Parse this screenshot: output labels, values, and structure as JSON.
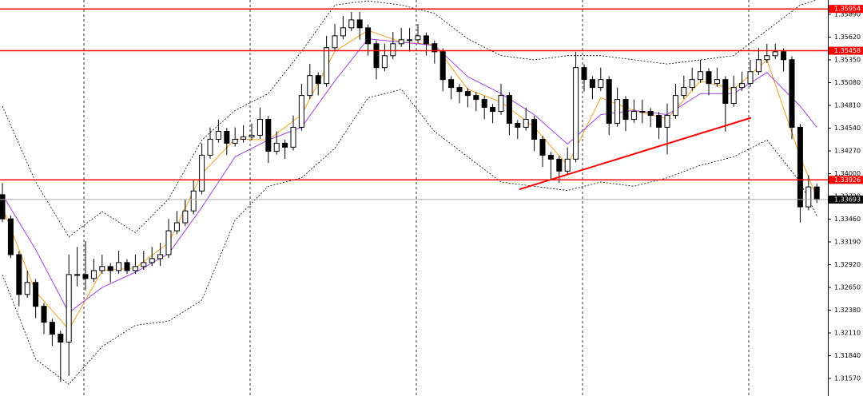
{
  "chart_data": {
    "type": "candlestick",
    "open": [
      1.3375,
      1.33464,
      1.33039,
      1.32567,
      1.32709,
      1.32426,
      1.32237,
      1.32095,
      1.32001,
      1.32803,
      1.32803,
      1.32756,
      1.3285,
      1.32898,
      1.3285,
      1.32945,
      1.3285,
      1.32898,
      1.32945,
      1.32992,
      1.33039,
      1.33322,
      1.33417,
      1.33558,
      1.33794,
      1.34219,
      1.34408,
      1.34502,
      1.34361,
      1.34408,
      1.34436,
      1.34455,
      1.34644,
      1.34266,
      1.34361,
      1.34314,
      1.3455,
      1.34927,
      1.35163,
      1.35069,
      1.35494,
      1.35635,
      1.3573,
      1.35824,
      1.3573,
      1.35541,
      1.35258,
      1.35399,
      1.35541,
      1.35588,
      1.35588,
      1.35635,
      1.35541,
      1.35446,
      1.35116,
      1.35022,
      1.34974,
      1.34927,
      1.3488,
      1.34786,
      1.34738,
      1.34927,
      1.34597,
      1.3455,
      1.34644,
      1.34408,
      1.34219,
      1.34172,
      1.3403,
      1.34172,
      1.35258,
      1.35116,
      1.35022,
      1.35116,
      1.34597,
      1.3488,
      1.34644,
      1.34738,
      1.34738,
      1.34691,
      1.3455,
      1.34691,
      1.34927,
      1.35022,
      1.35116,
      1.3521,
      1.35069,
      1.35116,
      1.34833,
      1.35022,
      1.35069,
      1.3521,
      1.35352,
      1.35399,
      1.35446,
      1.35352,
      1.3455,
      1.33606,
      1.33842
    ],
    "high": [
      1.3389,
      1.33504,
      1.33079,
      1.32849,
      1.32749,
      1.32466,
      1.32277,
      1.32135,
      1.3304,
      1.3313,
      1.332,
      1.3299,
      1.33038,
      1.32938,
      1.33085,
      1.32985,
      1.33038,
      1.33085,
      1.33132,
      1.33179,
      1.33462,
      1.33557,
      1.33698,
      1.33934,
      1.34359,
      1.34548,
      1.34642,
      1.34542,
      1.34548,
      1.34576,
      1.34595,
      1.34784,
      1.34684,
      1.34501,
      1.34401,
      1.3469,
      1.35067,
      1.35303,
      1.35203,
      1.35634,
      1.35775,
      1.3587,
      1.35918,
      1.35918,
      1.3577,
      1.35581,
      1.35539,
      1.35681,
      1.35728,
      1.35728,
      1.35775,
      1.35675,
      1.35581,
      1.35486,
      1.35156,
      1.35062,
      1.35014,
      1.34967,
      1.3492,
      1.34826,
      1.35067,
      1.34967,
      1.34637,
      1.34784,
      1.34684,
      1.34448,
      1.34259,
      1.34212,
      1.34312,
      1.35446,
      1.35298,
      1.35156,
      1.35256,
      1.35156,
      1.3502,
      1.3492,
      1.34878,
      1.34878,
      1.34778,
      1.34731,
      1.34831,
      1.35067,
      1.35162,
      1.35256,
      1.3535,
      1.3525,
      1.35256,
      1.35156,
      1.35162,
      1.35209,
      1.3535,
      1.35492,
      1.35539,
      1.3554,
      1.35486,
      1.35392,
      1.3459,
      1.33982,
      1.33882
    ],
    "low": [
      1.33424,
      1.32999,
      1.32427,
      1.32527,
      1.32286,
      1.32097,
      1.31955,
      1.31529,
      1.316,
      1.32663,
      1.32616,
      1.32716,
      1.3281,
      1.3271,
      1.3281,
      1.3281,
      1.3281,
      1.32858,
      1.32905,
      1.32905,
      1.32999,
      1.33282,
      1.33377,
      1.33518,
      1.33754,
      1.34179,
      1.34368,
      1.34221,
      1.34321,
      1.34368,
      1.34396,
      1.34415,
      1.34126,
      1.34226,
      1.34174,
      1.34274,
      1.3451,
      1.34887,
      1.34929,
      1.35029,
      1.35454,
      1.35595,
      1.3569,
      1.3559,
      1.35401,
      1.35118,
      1.35218,
      1.35359,
      1.35501,
      1.35448,
      1.35548,
      1.35401,
      1.35306,
      1.34976,
      1.34882,
      1.34834,
      1.34787,
      1.3474,
      1.34646,
      1.34598,
      1.34698,
      1.34457,
      1.3441,
      1.3451,
      1.34268,
      1.34079,
      1.3392,
      1.3389,
      1.3399,
      1.34132,
      1.34976,
      1.34882,
      1.34982,
      1.34457,
      1.34557,
      1.34504,
      1.34604,
      1.34598,
      1.34551,
      1.3441,
      1.3423,
      1.34651,
      1.34887,
      1.34982,
      1.35076,
      1.34929,
      1.35029,
      1.345,
      1.34793,
      1.34982,
      1.35029,
      1.3517,
      1.35312,
      1.35359,
      1.35212,
      1.3441,
      1.3342,
      1.33566,
      1.33653
    ],
    "close": [
      1.33464,
      1.33039,
      1.32567,
      1.32709,
      1.32426,
      1.32237,
      1.32095,
      1.32001,
      1.32803,
      1.32803,
      1.32756,
      1.3285,
      1.32898,
      1.3285,
      1.32945,
      1.3285,
      1.32898,
      1.32945,
      1.32992,
      1.33039,
      1.33322,
      1.33417,
      1.33558,
      1.33794,
      1.34219,
      1.34408,
      1.34502,
      1.34361,
      1.34408,
      1.34436,
      1.34455,
      1.34644,
      1.34266,
      1.34361,
      1.34314,
      1.3455,
      1.34927,
      1.35163,
      1.35069,
      1.35494,
      1.35635,
      1.3573,
      1.35824,
      1.3573,
      1.35541,
      1.35258,
      1.35399,
      1.35541,
      1.35588,
      1.35588,
      1.35635,
      1.35541,
      1.35446,
      1.35116,
      1.35022,
      1.34974,
      1.34927,
      1.3488,
      1.34786,
      1.34738,
      1.34927,
      1.34597,
      1.3455,
      1.34644,
      1.34408,
      1.34219,
      1.34172,
      1.3403,
      1.34172,
      1.35258,
      1.35116,
      1.35022,
      1.35116,
      1.34597,
      1.3488,
      1.34644,
      1.34738,
      1.34738,
      1.34691,
      1.3455,
      1.34691,
      1.34927,
      1.35022,
      1.35116,
      1.3521,
      1.35069,
      1.35116,
      1.34833,
      1.35022,
      1.35069,
      1.3521,
      1.35352,
      1.35399,
      1.35446,
      1.35352,
      1.3455,
      1.33606,
      1.33842,
      1.33693
    ],
    "series": [
      {
        "color": "#f0a020",
        "dash": false,
        "x": [
          0,
          4,
          8,
          12,
          16,
          20,
          24,
          28,
          32,
          36,
          40,
          44,
          48,
          52,
          56,
          60,
          64,
          68,
          72,
          76,
          80,
          84,
          88,
          92,
          96,
          98
        ],
        "values": [
          1.336,
          1.326,
          1.3215,
          1.3285,
          1.3288,
          1.3318,
          1.34,
          1.3441,
          1.344,
          1.347,
          1.3545,
          1.357,
          1.3556,
          1.3553,
          1.35,
          1.3485,
          1.3455,
          1.341,
          1.349,
          1.3475,
          1.3465,
          1.351,
          1.35,
          1.3535,
          1.342,
          1.3372
        ]
      },
      {
        "color": "#a040e0",
        "dash": false,
        "x": [
          0,
          4,
          8,
          12,
          16,
          20,
          24,
          28,
          32,
          36,
          40,
          44,
          48,
          52,
          56,
          60,
          64,
          68,
          72,
          76,
          80,
          84,
          88,
          92,
          96,
          98
        ],
        "values": [
          1.3375,
          1.331,
          1.3235,
          1.3265,
          1.3283,
          1.3305,
          1.336,
          1.342,
          1.344,
          1.3455,
          1.351,
          1.356,
          1.3556,
          1.3552,
          1.3515,
          1.3495,
          1.347,
          1.3435,
          1.347,
          1.3475,
          1.347,
          1.3495,
          1.3495,
          1.352,
          1.348,
          1.3455
        ]
      },
      {
        "color": "#000000",
        "dash": true,
        "x": [
          0,
          4,
          8,
          12,
          16,
          20,
          24,
          28,
          32,
          36,
          40,
          44,
          48,
          52,
          56,
          60,
          64,
          68,
          72,
          76,
          80,
          84,
          88,
          92,
          96,
          98
        ],
        "values": [
          1.348,
          1.339,
          1.3325,
          1.3355,
          1.333,
          1.337,
          1.344,
          1.3475,
          1.3495,
          1.3545,
          1.36,
          1.3605,
          1.36,
          1.359,
          1.356,
          1.354,
          1.3535,
          1.354,
          1.354,
          1.3535,
          1.353,
          1.3535,
          1.354,
          1.357,
          1.36,
          1.3606
        ]
      },
      {
        "color": "#000000",
        "dash": true,
        "x": [
          0,
          4,
          8,
          12,
          16,
          20,
          24,
          28,
          32,
          36,
          40,
          44,
          48,
          52,
          56,
          60,
          64,
          68,
          72,
          76,
          80,
          84,
          88,
          92,
          96,
          98
        ],
        "values": [
          1.328,
          1.318,
          1.315,
          1.3195,
          1.322,
          1.3225,
          1.325,
          1.3345,
          1.3385,
          1.3395,
          1.343,
          1.349,
          1.35,
          1.345,
          1.342,
          1.339,
          1.3385,
          1.338,
          1.339,
          1.3385,
          1.3395,
          1.341,
          1.342,
          1.344,
          1.339,
          1.335
        ]
      }
    ],
    "trendline": {
      "color": "#ff0000",
      "x": [
        62.2,
        90.1
      ],
      "values": [
        1.33813,
        1.34663
      ]
    },
    "levels": [
      {
        "value": 1.35954,
        "color": "#ff0000"
      },
      {
        "value": 1.35458,
        "color": "#ff0000"
      },
      {
        "value": 1.33926,
        "color": "#ff0000"
      },
      {
        "value": 1.33693,
        "color": "#000000"
      }
    ],
    "ylim": [
      1.31362,
      1.3606
    ],
    "yticks": [
      {
        "value": 1.3589,
        "label": "1.35890"
      },
      {
        "value": 1.3562,
        "label": "1.35620"
      },
      {
        "value": 1.3535,
        "label": "1.35350"
      },
      {
        "value": 1.3508,
        "label": "1.35080"
      },
      {
        "value": 1.3481,
        "label": "1.34810"
      },
      {
        "value": 1.3454,
        "label": "1.34540"
      },
      {
        "value": 1.3427,
        "label": "1.34270"
      },
      {
        "value": 1.34,
        "label": "1.34000"
      },
      {
        "value": 1.3373,
        "label": "1.33730"
      },
      {
        "value": 1.3346,
        "label": "1.33460"
      },
      {
        "value": 1.3319,
        "label": "1.33190"
      },
      {
        "value": 1.3292,
        "label": "1.32920"
      },
      {
        "value": 1.3265,
        "label": "1.32650"
      },
      {
        "value": 1.3238,
        "label": "1.32380"
      },
      {
        "value": 1.3211,
        "label": "1.32110"
      },
      {
        "value": 1.3184,
        "label": "1.31840"
      },
      {
        "value": 1.3157,
        "label": "1.31570"
      }
    ],
    "grid": true
  }
}
